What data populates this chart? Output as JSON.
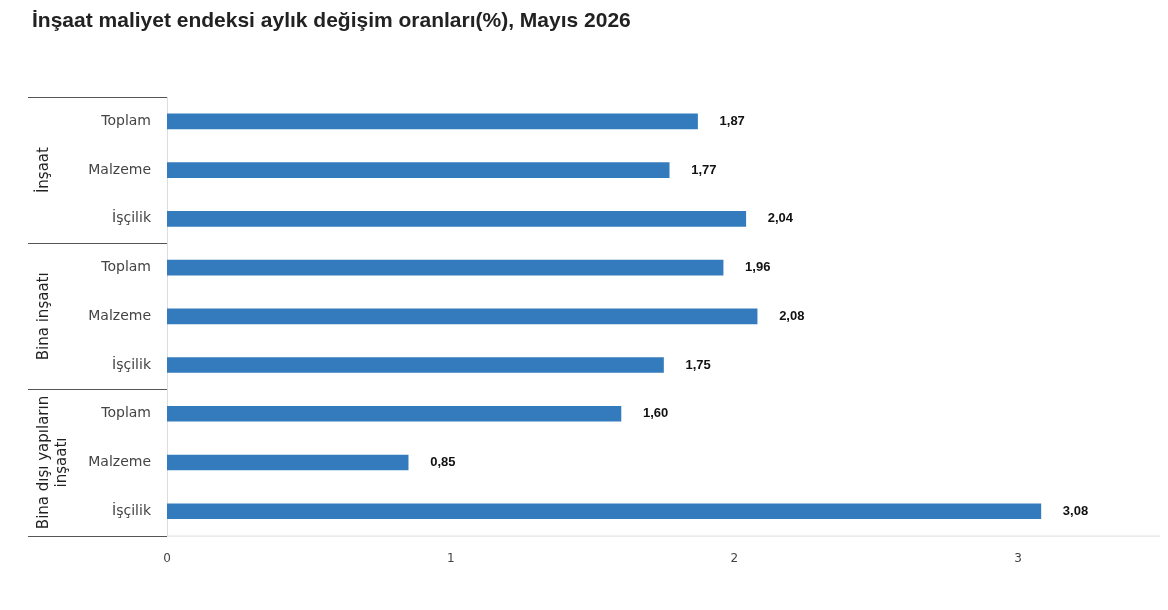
{
  "chart_data": {
    "type": "bar",
    "orientation": "horizontal",
    "title": "İnşaat maliyet endeksi aylık değişim oranları(%), Mayıs 2026",
    "categories": [
      "Toplam",
      "Malzeme",
      "İşçilik",
      "Toplam",
      "Malzeme",
      "İşçilik",
      "Toplam",
      "Malzeme",
      "İşçilik"
    ],
    "values": [
      1.87,
      1.77,
      2.04,
      1.96,
      2.08,
      1.75,
      1.6,
      0.85,
      3.08
    ],
    "value_labels": [
      "1,87",
      "1,77",
      "2,04",
      "1,96",
      "2,08",
      "1,75",
      "1,60",
      "0,85",
      "3,08"
    ],
    "color": "#337bbd",
    "annotations": [
      "İnşaat",
      "Bina inşaatı",
      "Bina dışı yapıların inşaatı"
    ],
    "xlim": [
      0,
      3.5
    ],
    "xticks": [
      0,
      1,
      2,
      3
    ],
    "grid": false,
    "legend": false
  }
}
